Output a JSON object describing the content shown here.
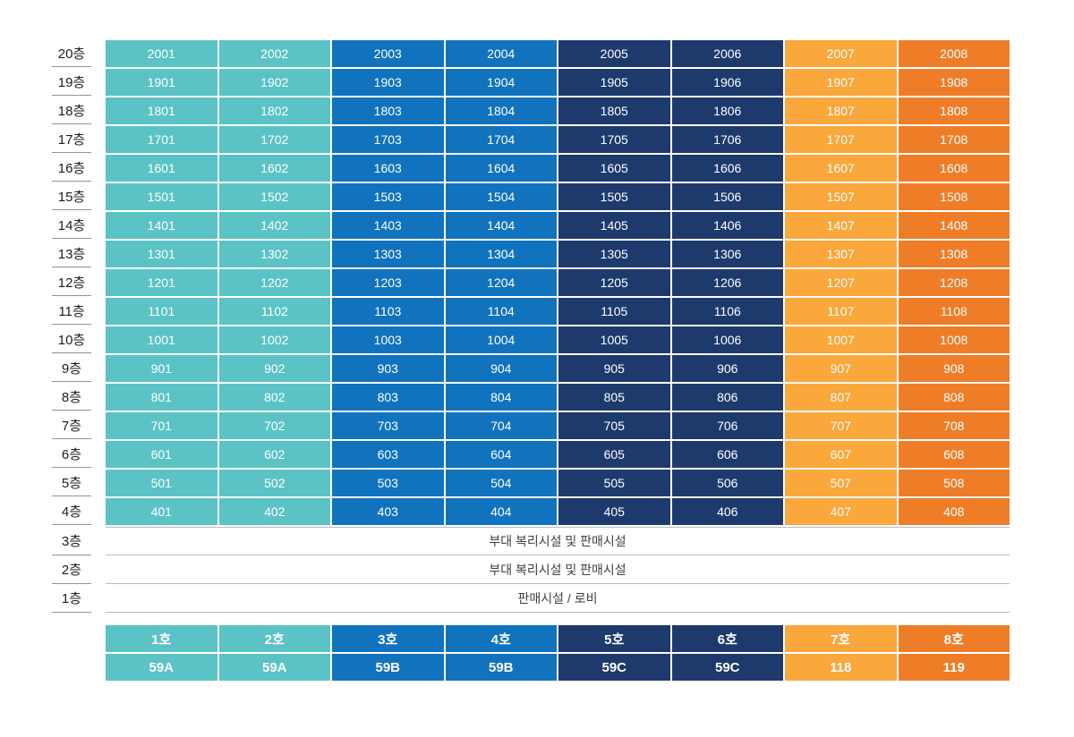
{
  "column_colors": [
    "#5BC3C5",
    "#5BC3C5",
    "#1173BD",
    "#1173BD",
    "#1E3A6D",
    "#1E3A6D",
    "#FAA73C",
    "#EF7D28"
  ],
  "floors": [
    {
      "label": "20층",
      "units": [
        "2001",
        "2002",
        "2003",
        "2004",
        "2005",
        "2006",
        "2007",
        "2008"
      ]
    },
    {
      "label": "19층",
      "units": [
        "1901",
        "1902",
        "1903",
        "1904",
        "1905",
        "1906",
        "1907",
        "1908"
      ]
    },
    {
      "label": "18층",
      "units": [
        "1801",
        "1802",
        "1803",
        "1804",
        "1805",
        "1806",
        "1807",
        "1808"
      ]
    },
    {
      "label": "17층",
      "units": [
        "1701",
        "1702",
        "1703",
        "1704",
        "1705",
        "1706",
        "1707",
        "1708"
      ]
    },
    {
      "label": "16층",
      "units": [
        "1601",
        "1602",
        "1603",
        "1604",
        "1605",
        "1606",
        "1607",
        "1608"
      ]
    },
    {
      "label": "15층",
      "units": [
        "1501",
        "1502",
        "1503",
        "1504",
        "1505",
        "1506",
        "1507",
        "1508"
      ]
    },
    {
      "label": "14층",
      "units": [
        "1401",
        "1402",
        "1403",
        "1404",
        "1405",
        "1406",
        "1407",
        "1408"
      ]
    },
    {
      "label": "13층",
      "units": [
        "1301",
        "1302",
        "1303",
        "1304",
        "1305",
        "1306",
        "1307",
        "1308"
      ]
    },
    {
      "label": "12층",
      "units": [
        "1201",
        "1202",
        "1203",
        "1204",
        "1205",
        "1206",
        "1207",
        "1208"
      ]
    },
    {
      "label": "11층",
      "units": [
        "1101",
        "1102",
        "1103",
        "1104",
        "1105",
        "1106",
        "1107",
        "1108"
      ]
    },
    {
      "label": "10층",
      "units": [
        "1001",
        "1002",
        "1003",
        "1004",
        "1005",
        "1006",
        "1007",
        "1008"
      ]
    },
    {
      "label": "9층",
      "units": [
        "901",
        "902",
        "903",
        "904",
        "905",
        "906",
        "907",
        "908"
      ]
    },
    {
      "label": "8층",
      "units": [
        "801",
        "802",
        "803",
        "804",
        "805",
        "806",
        "807",
        "808"
      ]
    },
    {
      "label": "7층",
      "units": [
        "701",
        "702",
        "703",
        "704",
        "705",
        "706",
        "707",
        "708"
      ]
    },
    {
      "label": "6층",
      "units": [
        "601",
        "602",
        "603",
        "604",
        "605",
        "606",
        "607",
        "608"
      ]
    },
    {
      "label": "5층",
      "units": [
        "501",
        "502",
        "503",
        "504",
        "505",
        "506",
        "507",
        "508"
      ]
    },
    {
      "label": "4층",
      "units": [
        "401",
        "402",
        "403",
        "404",
        "405",
        "406",
        "407",
        "408"
      ]
    }
  ],
  "facility_floors": [
    {
      "label": "3층",
      "text": "부대 복리시설 및 판매시설"
    },
    {
      "label": "2층",
      "text": "부대 복리시설 및 판매시설"
    },
    {
      "label": "1층",
      "text": "판매시설 / 로비"
    }
  ],
  "legend": {
    "ho": [
      "1호",
      "2호",
      "3호",
      "4호",
      "5호",
      "6호",
      "7호",
      "8호"
    ],
    "types": [
      "59A",
      "59A",
      "59B",
      "59B",
      "59C",
      "59C",
      "118",
      "119"
    ]
  }
}
